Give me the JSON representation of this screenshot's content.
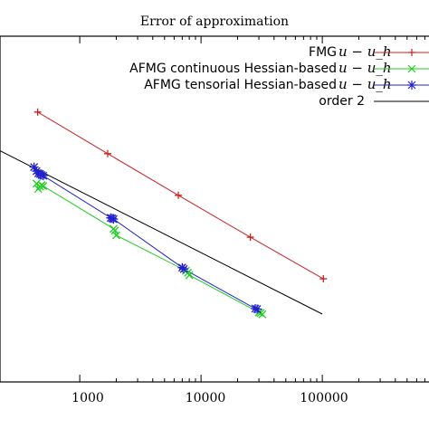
{
  "chart_data": {
    "type": "line",
    "title": "Error of approximation",
    "xlabel": "",
    "ylabel": "",
    "x_scale": "log",
    "y_scale": "log",
    "xlim": [
      220,
      900000
    ],
    "ylim": [
      5e-06,
      0.5
    ],
    "x_ticks": [
      {
        "value": 1000,
        "label": "1000"
      },
      {
        "value": 10000,
        "label": "10000"
      },
      {
        "value": 100000,
        "label": "100000"
      }
    ],
    "grid": false,
    "legend_position": "top-right",
    "series": [
      {
        "name": "FMG",
        "math_suffix": "u − u_h",
        "color": "#cc2222",
        "marker": "plus",
        "x": [
          450,
          1700,
          6500,
          25500,
          102000
        ],
        "y": [
          0.04,
          0.01,
          0.0025,
          0.00062,
          0.000155
        ]
      },
      {
        "name": "AFMG continuous Hessian-based",
        "math_suffix": "u − u_h",
        "color": "#22cc22",
        "marker": "x",
        "x": [
          440,
          455,
          470,
          485,
          500,
          1900,
          1950,
          2000,
          7500,
          7800,
          8000,
          30000,
          31000,
          32000
        ],
        "y": [
          0.0037,
          0.0031,
          0.00335,
          0.0035,
          0.0034,
          0.00082,
          0.00077,
          0.00066,
          0.000203,
          0.00019,
          0.000175,
          5.05e-05,
          4.95e-05,
          4.75e-05
        ]
      },
      {
        "name": "AFMG tensorial Hessian-based",
        "math_suffix": "u − u_h",
        "color": "#2222cc",
        "marker": "star",
        "x": [
          420,
          440,
          455,
          470,
          485,
          500,
          1800,
          1850,
          1900,
          7000,
          7200,
          28000,
          29000
        ],
        "y": [
          0.0064,
          0.0056,
          0.0052,
          0.0051,
          0.0049,
          0.0048,
          0.00118,
          0.00116,
          0.00113,
          0.000225,
          0.000215,
          5.75e-05,
          5.65e-05
        ]
      },
      {
        "name": "order 2",
        "math_suffix": "",
        "color": "#000000",
        "marker": "none",
        "x": [
          200,
          100000
        ],
        "y": [
          0.012,
          4.8e-05
        ]
      }
    ]
  }
}
